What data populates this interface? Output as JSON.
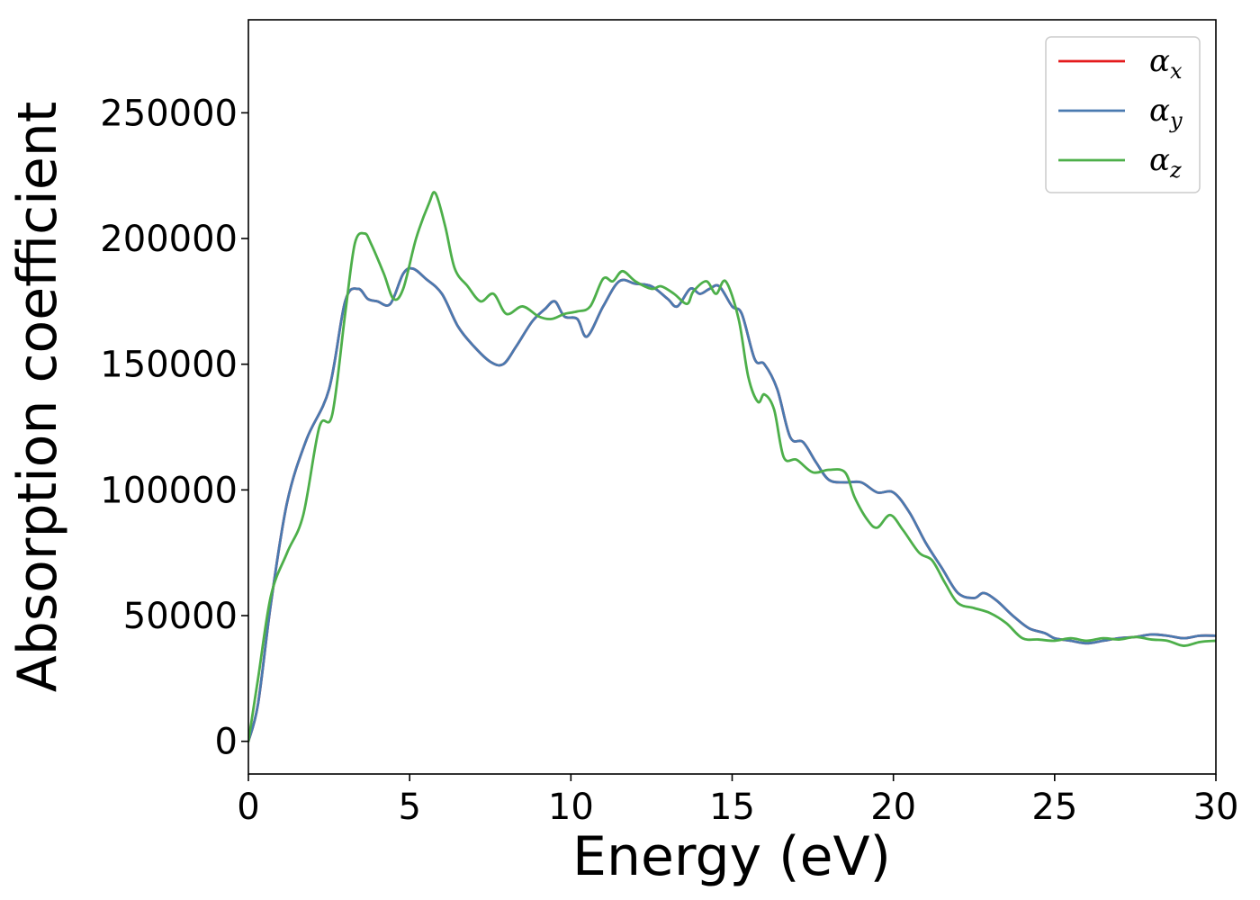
{
  "chart_data": {
    "type": "line",
    "title": "",
    "xlabel": "Energy (eV)",
    "ylabel": "Absorption coefficient",
    "xlim": [
      0,
      30
    ],
    "ylim": [
      -13000,
      287000
    ],
    "xticks": [
      0,
      5,
      10,
      15,
      20,
      25,
      30
    ],
    "yticks": [
      0,
      50000,
      100000,
      150000,
      200000,
      250000
    ],
    "xtick_labels": [
      "0",
      "5",
      "10",
      "15",
      "20",
      "25",
      "30"
    ],
    "ytick_labels": [
      "0",
      "50000",
      "100000",
      "150000",
      "200000",
      "250000"
    ],
    "grid": false,
    "legend_position": "top-right",
    "series": [
      {
        "name": "α_x",
        "label_main": "α",
        "label_sub": "x",
        "color": "#e41a1c",
        "x": [
          0,
          0.3,
          0.7,
          1.2,
          1.8,
          2.5,
          3.0,
          3.4,
          3.7,
          4.0,
          4.4,
          4.8,
          5.1,
          5.5,
          6.0,
          6.5,
          7.0,
          7.5,
          7.9,
          8.3,
          8.8,
          9.2,
          9.5,
          9.8,
          10.2,
          10.5,
          11.0,
          11.5,
          12.0,
          12.5,
          13.0,
          13.3,
          13.7,
          14.0,
          14.3,
          14.6,
          15.0,
          15.3,
          15.7,
          16.0,
          16.4,
          16.8,
          17.2,
          17.6,
          18.0,
          18.5,
          19.0,
          19.5,
          20.0,
          20.5,
          21.0,
          21.5,
          22.0,
          22.5,
          22.8,
          23.2,
          23.7,
          24.2,
          24.7,
          25.0,
          25.5,
          26.0,
          26.5,
          27.0,
          27.5,
          28.0,
          28.5,
          29.0,
          29.5,
          30.0
        ],
        "values": [
          0,
          15000,
          55000,
          95000,
          120000,
          140000,
          175000,
          180000,
          176000,
          175000,
          174000,
          186000,
          188000,
          184000,
          178000,
          165000,
          157000,
          151000,
          150000,
          157000,
          167000,
          172000,
          175000,
          169000,
          168000,
          161000,
          173000,
          183000,
          182000,
          181000,
          176000,
          173000,
          180000,
          178000,
          180000,
          181000,
          173000,
          170000,
          152000,
          150000,
          140000,
          121000,
          119000,
          111000,
          104000,
          103000,
          103000,
          99000,
          99000,
          91000,
          79000,
          69000,
          59000,
          57000,
          59000,
          56000,
          50000,
          45000,
          43000,
          41000,
          40000,
          39000,
          40000,
          41000,
          41500,
          42500,
          42000,
          41000,
          42000,
          42000
        ]
      },
      {
        "name": "α_y",
        "label_main": "α",
        "label_sub": "y",
        "color": "#4a7ab0",
        "x": [
          0,
          0.3,
          0.7,
          1.2,
          1.8,
          2.5,
          3.0,
          3.4,
          3.7,
          4.0,
          4.4,
          4.8,
          5.1,
          5.5,
          6.0,
          6.5,
          7.0,
          7.5,
          7.9,
          8.3,
          8.8,
          9.2,
          9.5,
          9.8,
          10.2,
          10.5,
          11.0,
          11.5,
          12.0,
          12.5,
          13.0,
          13.3,
          13.7,
          14.0,
          14.3,
          14.6,
          15.0,
          15.3,
          15.7,
          16.0,
          16.4,
          16.8,
          17.2,
          17.6,
          18.0,
          18.5,
          19.0,
          19.5,
          20.0,
          20.5,
          21.0,
          21.5,
          22.0,
          22.5,
          22.8,
          23.2,
          23.7,
          24.2,
          24.7,
          25.0,
          25.5,
          26.0,
          26.5,
          27.0,
          27.5,
          28.0,
          28.5,
          29.0,
          29.5,
          30.0
        ],
        "values": [
          0,
          15000,
          55000,
          95000,
          120000,
          140000,
          175000,
          180000,
          176000,
          175000,
          174000,
          186000,
          188000,
          184000,
          178000,
          165000,
          157000,
          151000,
          150000,
          157000,
          167000,
          172000,
          175000,
          169000,
          168000,
          161000,
          173000,
          183000,
          182000,
          181000,
          176000,
          173000,
          180000,
          178000,
          180000,
          181000,
          173000,
          170000,
          152000,
          150000,
          140000,
          121000,
          119000,
          111000,
          104000,
          103000,
          103000,
          99000,
          99000,
          91000,
          79000,
          69000,
          59000,
          57000,
          59000,
          56000,
          50000,
          45000,
          43000,
          41000,
          40000,
          39000,
          40000,
          41000,
          41500,
          42500,
          42000,
          41000,
          42000,
          42000
        ]
      },
      {
        "name": "α_z",
        "label_main": "α",
        "label_sub": "z",
        "color": "#4daf4a",
        "x": [
          0,
          0.3,
          0.7,
          1.2,
          1.7,
          2.2,
          2.6,
          3.0,
          3.3,
          3.6,
          3.8,
          4.2,
          4.5,
          4.8,
          5.2,
          5.6,
          5.8,
          6.1,
          6.4,
          6.8,
          7.2,
          7.6,
          8.0,
          8.5,
          9.0,
          9.4,
          9.8,
          10.2,
          10.6,
          11.0,
          11.3,
          11.6,
          12.0,
          12.5,
          12.8,
          13.2,
          13.6,
          13.8,
          14.2,
          14.5,
          14.8,
          15.2,
          15.5,
          15.8,
          16.0,
          16.3,
          16.6,
          17.0,
          17.5,
          18.0,
          18.5,
          18.8,
          19.2,
          19.5,
          19.9,
          20.3,
          20.8,
          21.2,
          21.6,
          22.0,
          22.5,
          23.0,
          23.5,
          24.0,
          24.5,
          25.0,
          25.5,
          26.0,
          26.5,
          27.0,
          27.5,
          28.0,
          28.5,
          29.0,
          29.5,
          30.0
        ],
        "values": [
          0,
          25000,
          58000,
          75000,
          90000,
          125000,
          130000,
          170000,
          198000,
          202000,
          198000,
          186000,
          176000,
          180000,
          200000,
          214000,
          218000,
          205000,
          188000,
          181000,
          175000,
          178000,
          170000,
          173000,
          169000,
          168000,
          170000,
          171000,
          173000,
          184000,
          183000,
          187000,
          183000,
          180000,
          181000,
          178000,
          174000,
          179000,
          183000,
          178000,
          183000,
          168000,
          145000,
          135000,
          138000,
          132000,
          113000,
          112000,
          107000,
          108000,
          107000,
          97000,
          88000,
          85000,
          90000,
          84000,
          75000,
          72000,
          63000,
          55000,
          53000,
          51000,
          47000,
          41000,
          40500,
          40000,
          41000,
          40000,
          41000,
          40500,
          41500,
          40500,
          40000,
          38000,
          39500,
          40000
        ]
      }
    ]
  }
}
